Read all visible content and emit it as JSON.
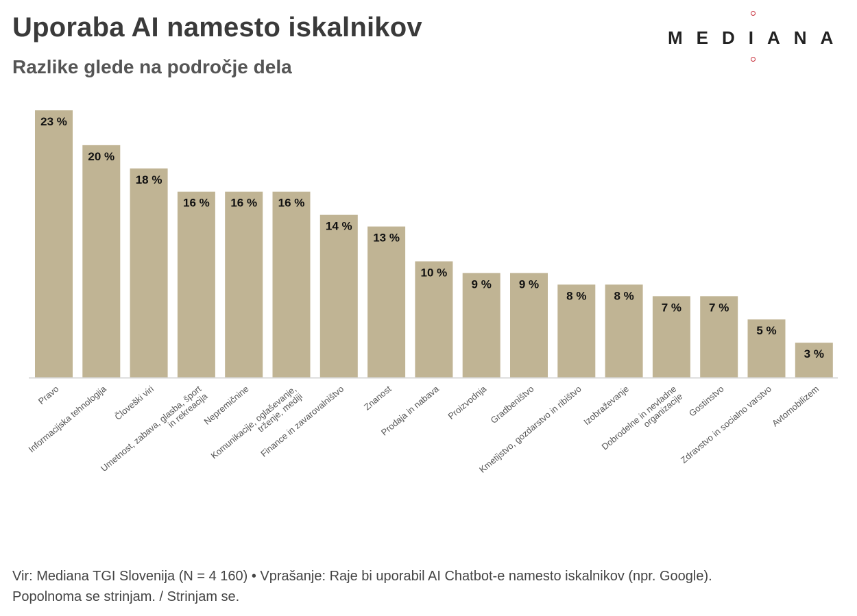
{
  "header": {
    "title": "Uporaba AI namesto iskalnikov",
    "subtitle": "Razlike glede na področje dela"
  },
  "logo": {
    "text": "MEDIANA",
    "icon": "mediana-logo",
    "accent_color": "#c8303c"
  },
  "colors": {
    "bar": "#c0b494",
    "label": "#111111",
    "axis": "#d8d8d8",
    "tick_label": "#555555"
  },
  "chart_data": {
    "type": "bar",
    "title": "Uporaba AI namesto iskalnikov",
    "subtitle": "Razlike glede na področje dela",
    "xlabel": "",
    "ylabel": "",
    "ylim": [
      0,
      23
    ],
    "grid": false,
    "legend": "none",
    "categories": [
      "Pravo",
      "Informacijska tehnologija",
      "Človeški viri",
      "Umetnost, zabava, glasba, šport in rekreacija",
      "Nepremičnine",
      "Komunikacije, oglaševanje, trženje, mediji",
      "Finance in zavarovalništvo",
      "Znanost",
      "Prodaja in nabava",
      "Proizvodnja",
      "Gradbeništvo",
      "Kmetijstvo, gozdarstvo in ribištvo",
      "Izobraževanje",
      "Dobrodelne in nevladne organizacije",
      "Gostinstvo",
      "Zdravstvo in socialno varstvo",
      "Avtomobilizem"
    ],
    "tick_labels": [
      [
        "Pravo"
      ],
      [
        "Informacijska tehnologija"
      ],
      [
        "Človeški viri"
      ],
      [
        "Umetnost, zabava, glasba, šport",
        "in rekreacija"
      ],
      [
        "Nepremičnine"
      ],
      [
        "Komunikacije, oglaševanje,",
        "trženje, mediji"
      ],
      [
        "Finance in zavarovalništvo"
      ],
      [
        "Znanost"
      ],
      [
        "Prodaja in nabava"
      ],
      [
        "Proizvodnja"
      ],
      [
        "Gradbeništvo"
      ],
      [
        "Kmetijstvo, gozdarstvo in ribištvo"
      ],
      [
        "Izobraževanje"
      ],
      [
        "Dobrodelne in nevladne",
        "organizacije"
      ],
      [
        "Gostinstvo"
      ],
      [
        "Zdravstvo in socialno varstvo"
      ],
      [
        "Avtomobilizem"
      ]
    ],
    "values": [
      23,
      20,
      18,
      16,
      16,
      16,
      14,
      13,
      10,
      9,
      9,
      8,
      8,
      7,
      7,
      5,
      3
    ],
    "value_labels": [
      "23 %",
      "20 %",
      "18 %",
      "16 %",
      "16 %",
      "16 %",
      "14 %",
      "13 %",
      "10 %",
      "9 %",
      "9 %",
      "8 %",
      "8 %",
      "7 %",
      "7 %",
      "5 %",
      "3 %"
    ]
  },
  "footer": {
    "line1": "Vir: Mediana TGI Slovenija (N = 4 160) • Vprašanje: Raje bi uporabil AI Chatbot-e namesto iskalnikov (npr. Google).",
    "line2": "Popolnoma se strinjam. / Strinjam se."
  }
}
